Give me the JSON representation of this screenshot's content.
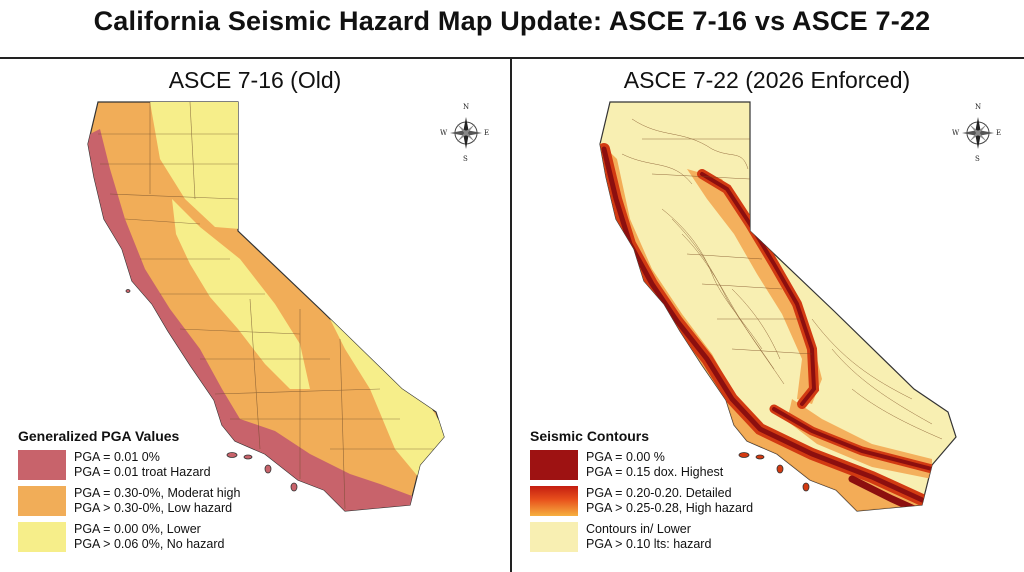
{
  "title": "California Seismic Hazard Map Update: ASCE 7-16 vs ASCE 7-22",
  "compass_labels": {
    "n": "N",
    "e": "E",
    "s": "S",
    "w": "W"
  },
  "left_panel": {
    "title": "ASCE 7-16 (Old)",
    "legend_title": "Generalized PGA Values",
    "legend": [
      {
        "color": "#c8636b",
        "line1": "PGA = 0.01 0%",
        "line2": "PGA = 0.01 troat Hazard"
      },
      {
        "color": "#f1ad58",
        "line1": "PGA = 0.30-0%,  Moderat high",
        "line2": "PGA > 0.30-0%, Low hazard"
      },
      {
        "color": "#f6ee8a",
        "line1": "PGA = 0.00 0%, Lower",
        "line2": "PGA > 0.06 0%, No hazard"
      }
    ]
  },
  "right_panel": {
    "title": "ASCE 7-22 (2026 Enforced)",
    "legend_title": "Seismic Contours",
    "legend": [
      {
        "color": "#9e1212",
        "line1": "PGA = 0.00 %",
        "line2": "PGA = 0.15 dox. Highest"
      },
      {
        "color": "#e8501c",
        "line1": "PGA = 0.20-0.20. Detailed",
        "line2": "PGA > 0.25-0.28, High hazard"
      },
      {
        "color": "#f8efb2",
        "line1": "Contours in/ Lower",
        "line2": "PGA > 0.10 lts: hazard"
      }
    ]
  },
  "colors": {
    "high": "#c8636b",
    "moderate": "#f1ad58",
    "low": "#f6ee8a",
    "highest_contour": "#9e1212",
    "detailed_contour": "#e8501c",
    "lower_contour": "#f8efb2"
  }
}
